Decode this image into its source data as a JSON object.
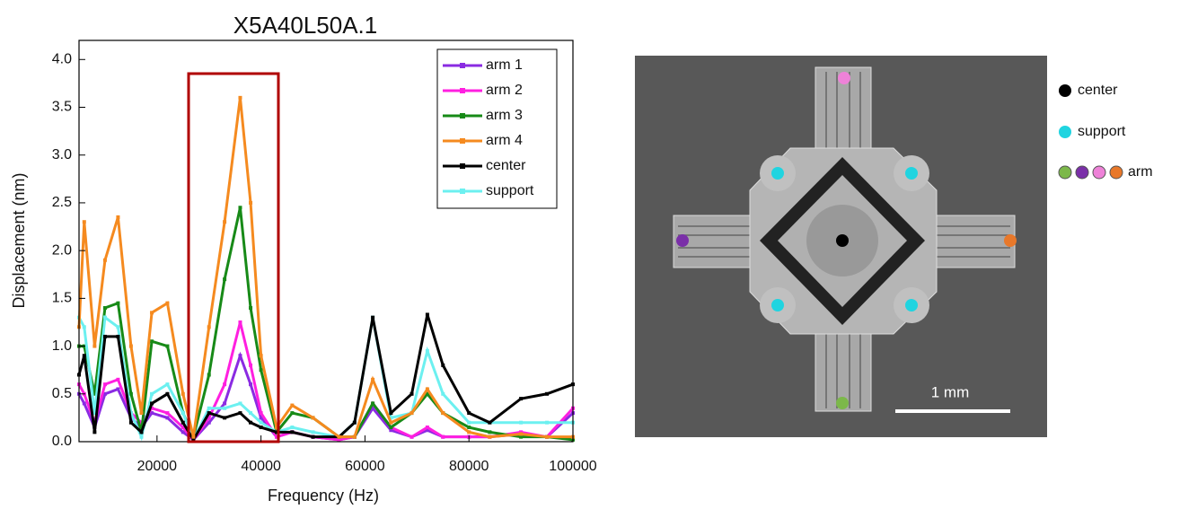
{
  "chart_data": {
    "type": "line",
    "title": "X5A40L50A.1",
    "xlabel": "Frequency (Hz)",
    "ylabel": "Displacement (nm)",
    "x": [
      5000,
      6000,
      8000,
      10000,
      12500,
      15000,
      17000,
      19000,
      22000,
      25000,
      27000,
      30000,
      33000,
      36000,
      38000,
      40000,
      43000,
      46000,
      50000,
      55000,
      58000,
      61500,
      65000,
      69000,
      72000,
      75000,
      80000,
      84000,
      90000,
      95000,
      100000
    ],
    "series": [
      {
        "name": "arm 1",
        "color": "#8a2be2",
        "values": [
          0.5,
          0.4,
          0.15,
          0.5,
          0.55,
          0.25,
          0.15,
          0.3,
          0.25,
          0.1,
          0.02,
          0.2,
          0.4,
          0.9,
          0.6,
          0.25,
          0.05,
          0.1,
          0.05,
          0.02,
          0.05,
          0.35,
          0.12,
          0.05,
          0.12,
          0.05,
          0.05,
          0.05,
          0.08,
          0.05,
          0.3
        ]
      },
      {
        "name": "arm 2",
        "color": "#ff1fe0",
        "values": [
          0.6,
          0.5,
          0.2,
          0.6,
          0.65,
          0.3,
          0.2,
          0.35,
          0.3,
          0.15,
          0.02,
          0.25,
          0.6,
          1.25,
          0.8,
          0.3,
          0.05,
          0.1,
          0.05,
          0.02,
          0.05,
          0.4,
          0.15,
          0.05,
          0.15,
          0.05,
          0.05,
          0.05,
          0.1,
          0.05,
          0.35
        ]
      },
      {
        "name": "arm 3",
        "color": "#178a17",
        "values": [
          1.0,
          1.0,
          0.5,
          1.4,
          1.45,
          0.5,
          0.1,
          1.05,
          1.0,
          0.3,
          0.05,
          0.7,
          1.7,
          2.45,
          1.4,
          0.75,
          0.1,
          0.3,
          0.25,
          0.05,
          0.05,
          0.4,
          0.15,
          0.3,
          0.5,
          0.3,
          0.15,
          0.1,
          0.05,
          0.05,
          0.02
        ]
      },
      {
        "name": "arm 4",
        "color": "#f58a1f",
        "values": [
          1.2,
          2.3,
          1.0,
          1.9,
          2.35,
          1.0,
          0.3,
          1.35,
          1.45,
          0.5,
          0.05,
          1.2,
          2.3,
          3.6,
          2.5,
          0.9,
          0.15,
          0.38,
          0.25,
          0.05,
          0.05,
          0.65,
          0.2,
          0.3,
          0.55,
          0.3,
          0.1,
          0.05,
          0.08,
          0.05,
          0.05
        ]
      },
      {
        "name": "center",
        "color": "#000000",
        "values": [
          0.7,
          0.9,
          0.1,
          1.1,
          1.1,
          0.2,
          0.1,
          0.4,
          0.5,
          0.2,
          0.02,
          0.3,
          0.25,
          0.3,
          0.2,
          0.15,
          0.1,
          0.1,
          0.05,
          0.05,
          0.2,
          1.3,
          0.3,
          0.5,
          1.33,
          0.8,
          0.3,
          0.2,
          0.45,
          0.5,
          0.6
        ]
      },
      {
        "name": "support",
        "color": "#6cf0f0",
        "values": [
          1.3,
          1.2,
          0.3,
          1.3,
          1.2,
          0.3,
          0.05,
          0.5,
          0.6,
          0.3,
          0.02,
          0.35,
          0.35,
          0.4,
          0.3,
          0.2,
          0.1,
          0.15,
          0.1,
          0.05,
          0.2,
          1.3,
          0.25,
          0.3,
          0.95,
          0.5,
          0.2,
          0.2,
          0.2,
          0.2,
          0.2
        ]
      }
    ],
    "xlim": [
      5000,
      100000
    ],
    "xticks": [
      20000,
      40000,
      60000,
      80000,
      100000
    ],
    "ylim": [
      0,
      4.2
    ],
    "yticks": [
      {
        "value": 0,
        "label": "0.0"
      },
      {
        "value": 0.5,
        "label": "0.5"
      },
      {
        "value": 1,
        "label": "1.0"
      },
      {
        "value": 1.5,
        "label": "1.5"
      },
      {
        "value": 2,
        "label": "2.0"
      },
      {
        "value": 2.5,
        "label": "2.5"
      },
      {
        "value": 3,
        "label": "3.0"
      },
      {
        "value": 3.5,
        "label": "3.5"
      },
      {
        "value": 4,
        "label": "4.0"
      }
    ],
    "legend": "upper right",
    "grid": false
  },
  "image_panel": {
    "scale_bar": "1 mm",
    "legend": [
      "center",
      "support",
      "arm"
    ]
  }
}
